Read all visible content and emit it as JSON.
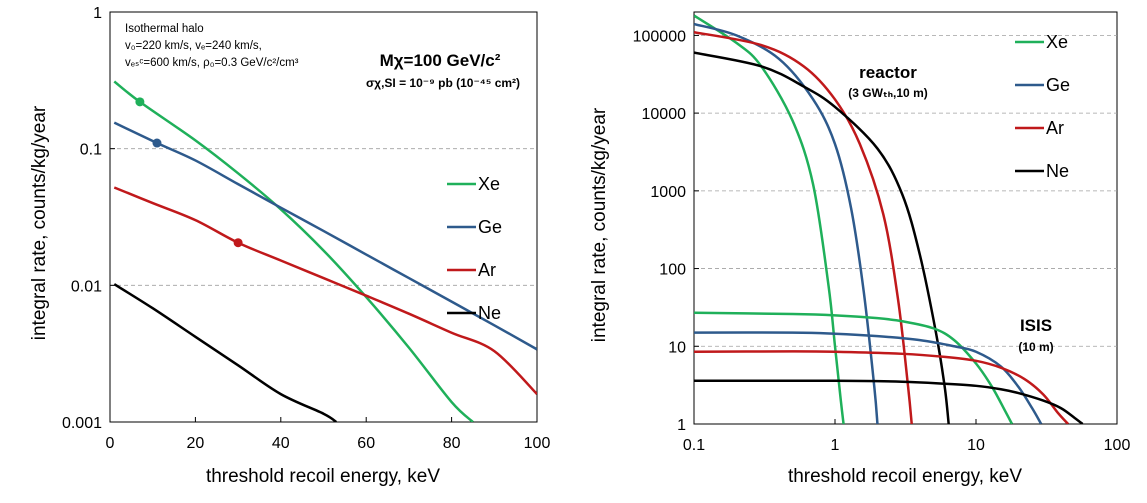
{
  "chart_data": [
    {
      "type": "line",
      "xlabel": "threshold recoil energy, keV",
      "ylabel": "integral rate, counts/kg/year",
      "xlim": [
        0,
        100
      ],
      "ylim": [
        0.001,
        1
      ],
      "yscale": "log",
      "x_ticks": [
        "0",
        "20",
        "40",
        "60",
        "80",
        "100"
      ],
      "y_ticks": [
        "0.001",
        "0.01",
        "0.1",
        "1"
      ],
      "legend_placement": "right",
      "annotations": {
        "halo_title": "Isothermal halo",
        "halo_line1": "v₀=220 km/s, vₑ=240 km/s,",
        "halo_line2": "vₑₛᶜ=600 km/s, ρ₀=0.3 GeV/c²/cm³",
        "mass": "Mχ=100 GeV/c²",
        "cross_section": "σχ,SI = 10⁻⁹ pb (10⁻⁴⁵ cm²)"
      },
      "series": [
        {
          "name": "Xe",
          "color": "#1fb05a",
          "x": [
            1,
            7,
            20,
            30,
            40,
            50,
            60,
            70,
            80,
            85
          ],
          "y": [
            0.31,
            0.22,
            0.115,
            0.066,
            0.036,
            0.018,
            0.0082,
            0.0035,
            0.0014,
            0.001
          ],
          "marker": [
            7,
            0.22
          ]
        },
        {
          "name": "Ge",
          "color": "#2e5a8c",
          "x": [
            1,
            11,
            20,
            30,
            40,
            50,
            60,
            70,
            80,
            90,
            100
          ],
          "y": [
            0.155,
            0.11,
            0.082,
            0.055,
            0.037,
            0.025,
            0.0168,
            0.0113,
            0.0076,
            0.0051,
            0.0034
          ],
          "marker": [
            11,
            0.11
          ]
        },
        {
          "name": "Ar",
          "color": "#c0191b",
          "x": [
            1,
            10,
            20,
            30,
            40,
            50,
            60,
            70,
            80,
            90,
            100
          ],
          "y": [
            0.052,
            0.04,
            0.03,
            0.0205,
            0.0152,
            0.0113,
            0.0084,
            0.0062,
            0.0045,
            0.0033,
            0.0016
          ],
          "marker": [
            30,
            0.0205
          ]
        },
        {
          "name": "Ne",
          "color": "#000000",
          "x": [
            1,
            10,
            20,
            30,
            40,
            50,
            53
          ],
          "y": [
            0.0102,
            0.0068,
            0.0042,
            0.0026,
            0.0016,
            0.00115,
            0.001
          ]
        }
      ]
    },
    {
      "type": "line",
      "xlabel": "threshold recoil energy, keV",
      "ylabel": "integral rate, counts/kg/year",
      "xlim": [
        0.1,
        100
      ],
      "ylim": [
        1,
        200000
      ],
      "xscale": "log",
      "yscale": "log",
      "x_ticks": [
        "0.1",
        "1",
        "10",
        "100"
      ],
      "y_ticks": [
        "1",
        "10",
        "100",
        "1000",
        "10000",
        "100000"
      ],
      "legend_placement": "top-right",
      "annotations": {
        "reactor": "reactor",
        "reactor_sub": "(3 GWₜₕ,10 m)",
        "isis": "ISIS",
        "isis_sub": "(10 m)"
      },
      "series": [
        {
          "name": "Xe",
          "color": "#1fb05a",
          "x": [
            0.1,
            0.2,
            0.3,
            0.5,
            0.7,
            0.9,
            1.0,
            1.1,
            1.15
          ],
          "y": [
            180000,
            80000,
            40000,
            8000,
            1200,
            60,
            10,
            2,
            1
          ]
        },
        {
          "name": "Ge",
          "color": "#2e5a8c",
          "x": [
            0.1,
            0.2,
            0.4,
            0.7,
            1.0,
            1.3,
            1.6,
            1.9,
            2.0
          ],
          "y": [
            140000,
            100000,
            50000,
            15000,
            4000,
            600,
            50,
            3,
            1
          ]
        },
        {
          "name": "Ar",
          "color": "#c0191b",
          "x": [
            0.1,
            0.3,
            0.6,
            1.0,
            1.5,
            2.2,
            2.8,
            3.3,
            3.5
          ],
          "y": [
            110000,
            75000,
            40000,
            15000,
            4000,
            500,
            40,
            3,
            1
          ]
        },
        {
          "name": "Ne",
          "color": "#000000",
          "x": [
            0.1,
            0.3,
            0.6,
            1.0,
            2.0,
            3.0,
            4.0,
            5.2,
            6.0,
            6.4
          ],
          "y": [
            60000,
            40000,
            22000,
            12000,
            3500,
            900,
            150,
            15,
            3,
            1
          ]
        },
        {
          "name": "Xe",
          "color": "#1fb05a",
          "x": [
            0.1,
            0.5,
            1,
            2,
            3,
            5,
            7,
            10,
            13,
            16,
            18
          ],
          "y": [
            27,
            26,
            25,
            23,
            21,
            17,
            12,
            6,
            3,
            1.5,
            1
          ]
        },
        {
          "name": "Ge",
          "color": "#2e5a8c",
          "x": [
            0.1,
            0.5,
            1,
            2,
            4,
            7,
            10,
            15,
            20,
            25,
            29
          ],
          "y": [
            15,
            15,
            14.5,
            13.5,
            12,
            10,
            8.5,
            5.5,
            3,
            1.6,
            1
          ]
        },
        {
          "name": "Ar",
          "color": "#c0191b",
          "x": [
            0.1,
            0.5,
            1,
            3,
            6,
            10,
            15,
            22,
            30,
            38,
            45
          ],
          "y": [
            8.5,
            8.6,
            8.5,
            8.0,
            7.3,
            6.5,
            5.3,
            3.8,
            2.4,
            1.4,
            1
          ]
        },
        {
          "name": "Ne",
          "color": "#000000",
          "x": [
            0.1,
            1,
            3,
            6,
            10,
            15,
            20,
            30,
            40,
            50,
            57
          ],
          "y": [
            3.6,
            3.6,
            3.5,
            3.3,
            3.1,
            2.8,
            2.5,
            2.0,
            1.6,
            1.2,
            1
          ]
        }
      ]
    }
  ]
}
